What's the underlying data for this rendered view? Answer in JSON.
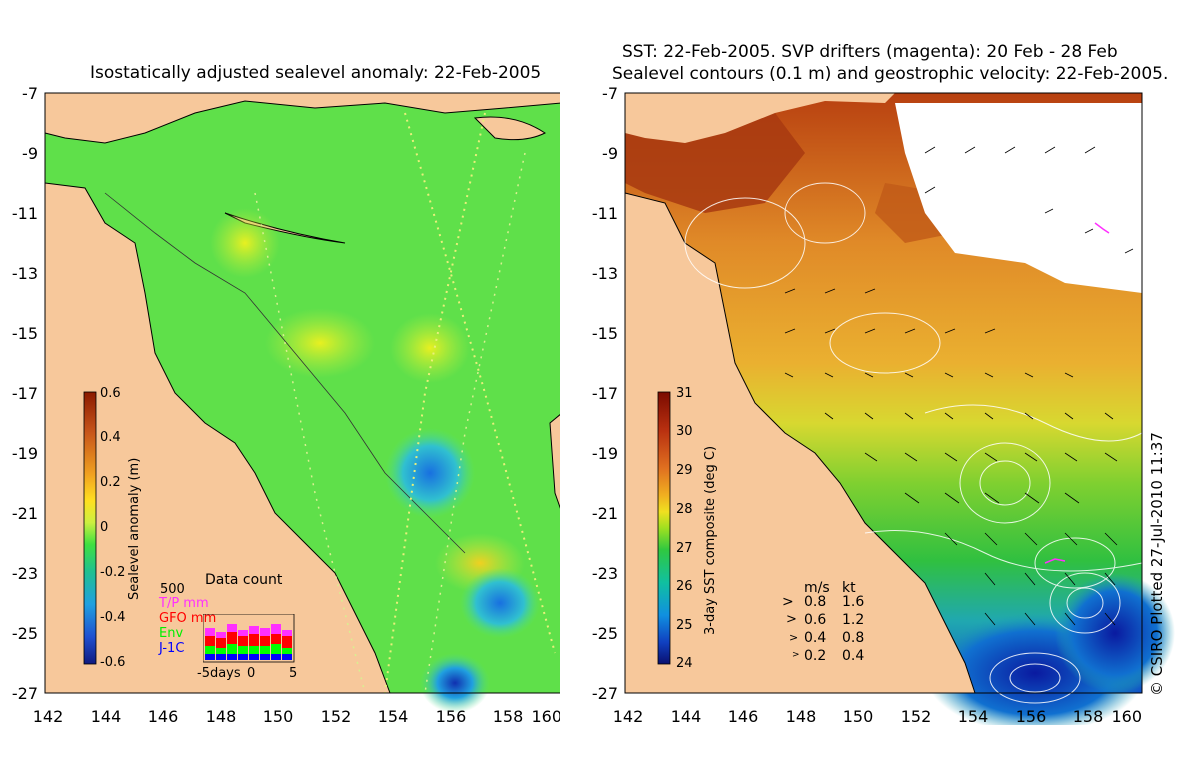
{
  "left_panel": {
    "title": "Isostatically adjusted sealevel anomaly: 22-Feb-2005",
    "y_ticks": [
      "-7",
      "-9",
      "-11",
      "-13",
      "-15",
      "-17",
      "-19",
      "-21",
      "-23",
      "-25",
      "-27"
    ],
    "x_ticks": [
      "142",
      "144",
      "146",
      "148",
      "150",
      "152",
      "154",
      "156",
      "158",
      "160"
    ],
    "colorbar": {
      "label": "Sealevel anomaly (m)",
      "ticks": [
        "0.6",
        "0.4",
        "0.2",
        "0",
        "-0.2",
        "-0.4",
        "-0.6"
      ],
      "colors": [
        "#8b1a00",
        "#c8561a",
        "#f0a020",
        "#ffe020",
        "#ccf040",
        "#40e040",
        "#20c090",
        "#20a0e0",
        "#2050d0",
        "#101a80"
      ]
    },
    "data_count": {
      "title": "Data count",
      "max_label": "500",
      "legend": [
        {
          "label": "T/P mm",
          "color": "#ff30ff"
        },
        {
          "label": "GFO mm",
          "color": "#ff0000"
        },
        {
          "label": "Env",
          "color": "#00ff00"
        },
        {
          "label": "J-1C",
          "color": "#0000ff"
        }
      ],
      "x_ticks": [
        "-5days",
        "0",
        "5"
      ]
    }
  },
  "right_panel": {
    "title_line1": "SST: 22-Feb-2005. SVP drifters (magenta): 20 Feb - 28 Feb",
    "title_line2": "Sealevel contours (0.1 m) and geostrophic velocity: 22-Feb-2005.",
    "y_ticks": [
      "-7",
      "-9",
      "-11",
      "-13",
      "-15",
      "-17",
      "-19",
      "-21",
      "-23",
      "-25",
      "-27"
    ],
    "x_ticks": [
      "142",
      "144",
      "146",
      "148",
      "150",
      "152",
      "154",
      "156",
      "158",
      "160"
    ],
    "colorbar": {
      "label": "3-day SST composite (deg C)",
      "ticks": [
        "31",
        "30",
        "29",
        "28",
        "27",
        "26",
        "25",
        "24"
      ],
      "colors": [
        "#7a0a00",
        "#b83010",
        "#e07020",
        "#f0b020",
        "#f0e020",
        "#a0e020",
        "#30c840",
        "#10c0a0",
        "#1090e0",
        "#1040c0",
        "#0a1070"
      ]
    },
    "velocity_key": {
      "header_ms": "m/s",
      "header_kt": "kt",
      "rows": [
        {
          "ms": "0.8",
          "kt": "1.6"
        },
        {
          "ms": "0.6",
          "kt": "1.2"
        },
        {
          "ms": "0.4",
          "kt": "0.8"
        },
        {
          "ms": "0.2",
          "kt": "0.4"
        }
      ]
    },
    "credit": "© CSIRO Plotted 27-Jul-2010 11:37"
  },
  "colors": {
    "land": "#f7c89b",
    "sla_background": "#5fe04a",
    "sst_warm": "#e89a30",
    "sst_hot": "#a83a10",
    "sst_cool": "#40c040",
    "sst_cold": "#1060d0"
  }
}
